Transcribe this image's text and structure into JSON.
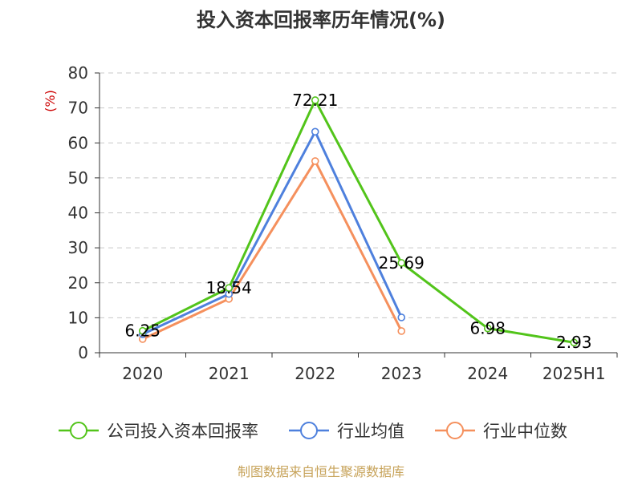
{
  "chart_data": {
    "type": "line",
    "title": "投入资本回报率历年情况(%)",
    "ylabel": "(%)",
    "categories": [
      "2020",
      "2021",
      "2022",
      "2023",
      "2024",
      "2025H1"
    ],
    "ylim": [
      0,
      80
    ],
    "yticks": [
      0,
      10,
      20,
      30,
      40,
      50,
      60,
      70,
      80
    ],
    "grid": true,
    "legend_position": "bottom",
    "series": [
      {
        "name": "公司投入资本回报率",
        "color": "#52c41a",
        "values": [
          6.25,
          18.54,
          72.21,
          25.69,
          6.98,
          2.93
        ],
        "labels": [
          "6.25",
          "18.54",
          "72.21",
          "25.69",
          "6.98",
          "2.93"
        ]
      },
      {
        "name": "行业均值",
        "color": "#4e80dd",
        "values": [
          5.3,
          16.8,
          63.2,
          10.1,
          null,
          null
        ]
      },
      {
        "name": "行业中位数",
        "color": "#f5905d",
        "values": [
          3.9,
          15.4,
          54.8,
          6.2,
          null,
          null
        ]
      }
    ],
    "unit_color": "#cc0000",
    "axis_color": "#333333",
    "grid_color": "#c8c8c8"
  },
  "source": {
    "text": "制图数据来自恒生聚源数据库",
    "color": "#c7a35a"
  }
}
